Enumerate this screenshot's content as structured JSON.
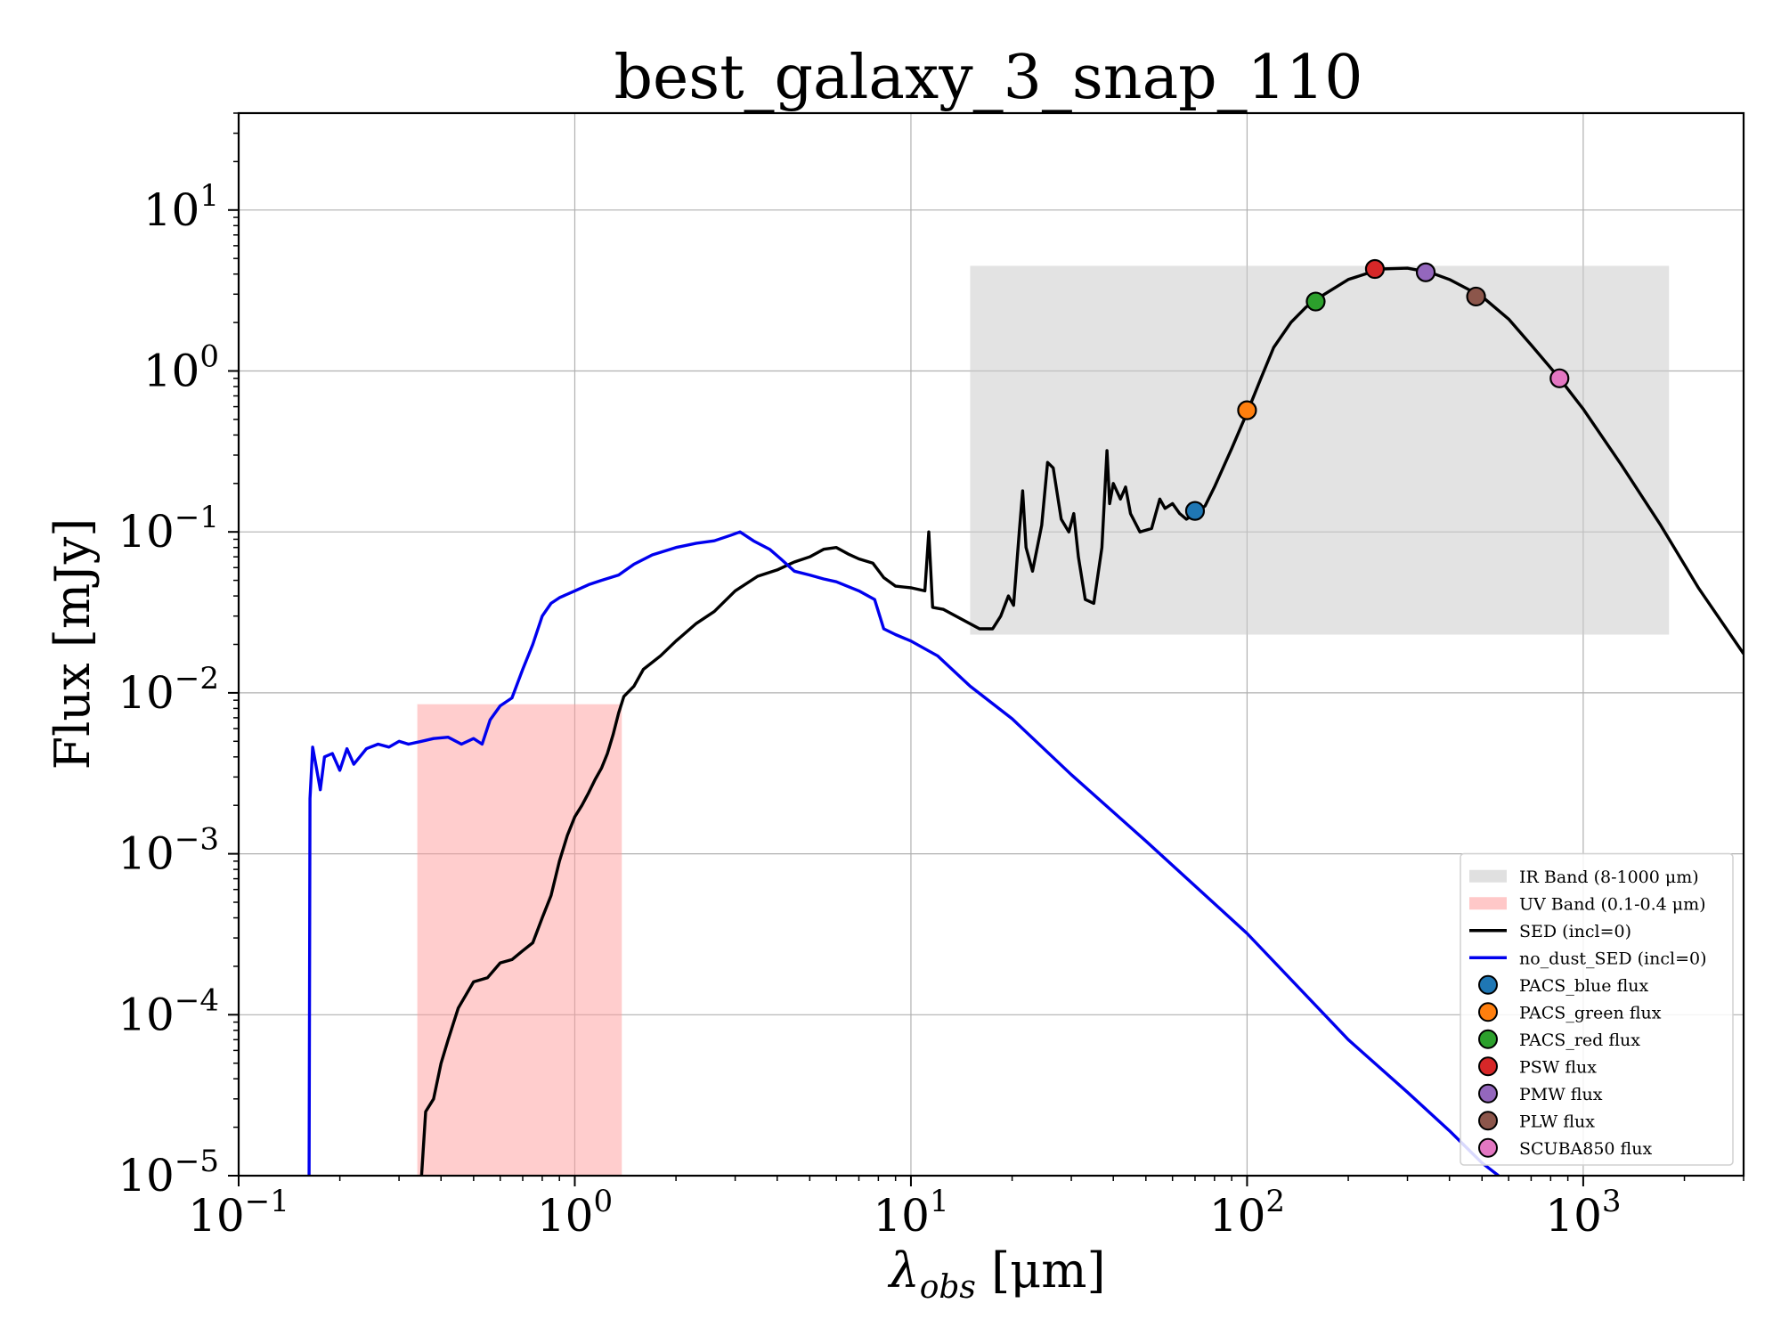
{
  "chart_data": {
    "type": "line",
    "title": "best_galaxy_3_snap_110",
    "xlabel": "λobs [μm]",
    "xlabel_main": "λ",
    "xlabel_sub": "obs",
    "xlabel_rest": " [μm]",
    "ylabel": "Flux [mJy]",
    "xscale": "log",
    "yscale": "log",
    "xlim": [
      0.1,
      3000
    ],
    "ylim": [
      1e-05,
      40
    ],
    "grid": true,
    "legend_position": "lower-right",
    "x_ticks": [
      {
        "value": 0.1,
        "base": "10",
        "exp": "−1"
      },
      {
        "value": 1,
        "base": "10",
        "exp": "0"
      },
      {
        "value": 10,
        "base": "10",
        "exp": "1"
      },
      {
        "value": 100,
        "base": "10",
        "exp": "2"
      },
      {
        "value": 1000,
        "base": "10",
        "exp": "3"
      }
    ],
    "y_ticks": [
      {
        "value": 1e-05,
        "base": "10",
        "exp": "−5"
      },
      {
        "value": 0.0001,
        "base": "10",
        "exp": "−4"
      },
      {
        "value": 0.001,
        "base": "10",
        "exp": "−3"
      },
      {
        "value": 0.01,
        "base": "10",
        "exp": "−2"
      },
      {
        "value": 0.1,
        "base": "10",
        "exp": "−1"
      },
      {
        "value": 1,
        "base": "10",
        "exp": "0"
      },
      {
        "value": 10,
        "base": "10",
        "exp": "1"
      }
    ],
    "bands": [
      {
        "name": "IR Band (8-1000 μm)",
        "x": [
          15,
          1800
        ],
        "y": [
          0.023,
          4.5
        ],
        "color": "#cccccc",
        "opacity": 0.55
      },
      {
        "name": "UV Band (0.1-0.4 μm)",
        "x": [
          0.34,
          1.38
        ],
        "y": [
          1e-05,
          0.0085
        ],
        "color": "#ff9b9b",
        "opacity": 0.5
      }
    ],
    "series": [
      {
        "name": "SED (incl=0)",
        "color": "#000000",
        "points": [
          [
            0.35,
            1e-05
          ],
          [
            0.36,
            2.5e-05
          ],
          [
            0.38,
            3e-05
          ],
          [
            0.4,
            5e-05
          ],
          [
            0.42,
            7e-05
          ],
          [
            0.45,
            0.00011
          ],
          [
            0.5,
            0.00016
          ],
          [
            0.55,
            0.00017
          ],
          [
            0.6,
            0.00021
          ],
          [
            0.65,
            0.00022
          ],
          [
            0.7,
            0.00025
          ],
          [
            0.75,
            0.00028
          ],
          [
            0.8,
            0.0004
          ],
          [
            0.85,
            0.00055
          ],
          [
            0.9,
            0.0009
          ],
          [
            0.95,
            0.0013
          ],
          [
            1.0,
            0.0017
          ],
          [
            1.05,
            0.002
          ],
          [
            1.1,
            0.0024
          ],
          [
            1.15,
            0.0029
          ],
          [
            1.2,
            0.0034
          ],
          [
            1.25,
            0.0042
          ],
          [
            1.3,
            0.0055
          ],
          [
            1.35,
            0.0075
          ],
          [
            1.4,
            0.0095
          ],
          [
            1.5,
            0.011
          ],
          [
            1.6,
            0.014
          ],
          [
            1.8,
            0.017
          ],
          [
            2.0,
            0.021
          ],
          [
            2.3,
            0.027
          ],
          [
            2.6,
            0.032
          ],
          [
            3.0,
            0.043
          ],
          [
            3.5,
            0.053
          ],
          [
            4.0,
            0.058
          ],
          [
            4.5,
            0.065
          ],
          [
            5.0,
            0.07
          ],
          [
            5.5,
            0.078
          ],
          [
            6.0,
            0.08
          ],
          [
            6.5,
            0.073
          ],
          [
            7.0,
            0.068
          ],
          [
            7.7,
            0.064
          ],
          [
            8.3,
            0.052
          ],
          [
            9.0,
            0.046
          ],
          [
            10.0,
            0.045
          ],
          [
            11.0,
            0.043
          ],
          [
            11.3,
            0.1
          ],
          [
            11.6,
            0.034
          ],
          [
            12.5,
            0.033
          ],
          [
            14.0,
            0.029
          ],
          [
            16.0,
            0.025
          ],
          [
            17.5,
            0.025
          ],
          [
            18.5,
            0.03
          ],
          [
            19.5,
            0.04
          ],
          [
            20.2,
            0.035
          ],
          [
            21.0,
            0.1
          ],
          [
            21.5,
            0.18
          ],
          [
            22.0,
            0.08
          ],
          [
            23.0,
            0.057
          ],
          [
            24.5,
            0.11
          ],
          [
            25.5,
            0.27
          ],
          [
            26.5,
            0.25
          ],
          [
            28.0,
            0.12
          ],
          [
            29.5,
            0.1
          ],
          [
            30.5,
            0.13
          ],
          [
            31.5,
            0.07
          ],
          [
            33.0,
            0.038
          ],
          [
            35.0,
            0.036
          ],
          [
            37.0,
            0.08
          ],
          [
            38.3,
            0.32
          ],
          [
            39.0,
            0.15
          ],
          [
            40.0,
            0.2
          ],
          [
            42.0,
            0.16
          ],
          [
            43.5,
            0.19
          ],
          [
            45.0,
            0.13
          ],
          [
            48.0,
            0.1
          ],
          [
            52.0,
            0.105
          ],
          [
            55.0,
            0.16
          ],
          [
            57.0,
            0.14
          ],
          [
            60.0,
            0.15
          ],
          [
            63.0,
            0.13
          ],
          [
            66.0,
            0.12
          ],
          [
            70.0,
            0.13
          ],
          [
            75.0,
            0.145
          ],
          [
            80.0,
            0.19
          ],
          [
            90.0,
            0.33
          ],
          [
            100.0,
            0.55
          ],
          [
            110.0,
            0.9
          ],
          [
            120.0,
            1.4
          ],
          [
            135.0,
            2.0
          ],
          [
            150.0,
            2.5
          ],
          [
            170.0,
            3.0
          ],
          [
            200.0,
            3.7
          ],
          [
            250.0,
            4.3
          ],
          [
            300.0,
            4.35
          ],
          [
            350.0,
            4.1
          ],
          [
            400.0,
            3.7
          ],
          [
            500.0,
            2.9
          ],
          [
            600.0,
            2.1
          ],
          [
            700.0,
            1.45
          ],
          [
            850.0,
            0.9
          ],
          [
            1000.0,
            0.58
          ],
          [
            1300.0,
            0.26
          ],
          [
            1700.0,
            0.11
          ],
          [
            2200.0,
            0.045
          ],
          [
            3000.0,
            0.0175
          ]
        ]
      },
      {
        "name": "no_dust_SED (incl=0)",
        "color": "#0000ee",
        "points": [
          [
            0.162,
            1e-05
          ],
          [
            0.163,
            0.0022
          ],
          [
            0.166,
            0.0046
          ],
          [
            0.17,
            0.0035
          ],
          [
            0.175,
            0.0025
          ],
          [
            0.18,
            0.004
          ],
          [
            0.19,
            0.0042
          ],
          [
            0.2,
            0.0033
          ],
          [
            0.21,
            0.0045
          ],
          [
            0.22,
            0.0036
          ],
          [
            0.24,
            0.0045
          ],
          [
            0.26,
            0.0048
          ],
          [
            0.28,
            0.0046
          ],
          [
            0.3,
            0.005
          ],
          [
            0.32,
            0.0048
          ],
          [
            0.35,
            0.005
          ],
          [
            0.38,
            0.0052
          ],
          [
            0.42,
            0.0053
          ],
          [
            0.46,
            0.0048
          ],
          [
            0.5,
            0.0052
          ],
          [
            0.53,
            0.0048
          ],
          [
            0.56,
            0.0068
          ],
          [
            0.6,
            0.0083
          ],
          [
            0.65,
            0.0093
          ],
          [
            0.7,
            0.014
          ],
          [
            0.75,
            0.02
          ],
          [
            0.8,
            0.03
          ],
          [
            0.85,
            0.036
          ],
          [
            0.9,
            0.039
          ],
          [
            1.0,
            0.043
          ],
          [
            1.1,
            0.047
          ],
          [
            1.2,
            0.05
          ],
          [
            1.35,
            0.054
          ],
          [
            1.5,
            0.063
          ],
          [
            1.7,
            0.072
          ],
          [
            2.0,
            0.08
          ],
          [
            2.3,
            0.085
          ],
          [
            2.6,
            0.088
          ],
          [
            2.9,
            0.095
          ],
          [
            3.1,
            0.1
          ],
          [
            3.4,
            0.088
          ],
          [
            3.8,
            0.078
          ],
          [
            4.1,
            0.068
          ],
          [
            4.5,
            0.057
          ],
          [
            5.0,
            0.054
          ],
          [
            5.5,
            0.051
          ],
          [
            6.0,
            0.049
          ],
          [
            7.0,
            0.043
          ],
          [
            7.8,
            0.038
          ],
          [
            8.3,
            0.025
          ],
          [
            9.0,
            0.023
          ],
          [
            10.0,
            0.021
          ],
          [
            12.0,
            0.017
          ],
          [
            15.0,
            0.011
          ],
          [
            20.0,
            0.0069
          ],
          [
            30.0,
            0.0031
          ],
          [
            50.0,
            0.0012
          ],
          [
            100.0,
            0.00032
          ],
          [
            200.0,
            7e-05
          ],
          [
            300.0,
            3.3e-05
          ],
          [
            400.0,
            1.9e-05
          ],
          [
            500.0,
            1.2e-05
          ],
          [
            560.0,
            1e-05
          ]
        ]
      }
    ],
    "markers": [
      {
        "name": "PACS_blue flux",
        "x": 70,
        "y": 0.135,
        "color": "#1f77b4"
      },
      {
        "name": "PACS_green flux",
        "x": 100,
        "y": 0.57,
        "color": "#ff7f0e"
      },
      {
        "name": "PACS_red flux",
        "x": 160,
        "y": 2.7,
        "color": "#2ca02c"
      },
      {
        "name": "PSW flux",
        "x": 240,
        "y": 4.3,
        "color": "#d62728"
      },
      {
        "name": "PMW flux",
        "x": 340,
        "y": 4.1,
        "color": "#9467bd"
      },
      {
        "name": "PLW flux",
        "x": 480,
        "y": 2.9,
        "color": "#8c564b"
      },
      {
        "name": "SCUBA850 flux",
        "x": 850,
        "y": 0.9,
        "color": "#e377c2"
      }
    ],
    "legend": [
      {
        "label": "IR Band (8-1000 μm)",
        "kind": "patch",
        "color": "#e0e0e0"
      },
      {
        "label": "UV Band (0.1-0.4 μm)",
        "kind": "patch",
        "color": "#ffc8c8"
      },
      {
        "label": "SED (incl=0)",
        "kind": "line",
        "color": "#000000"
      },
      {
        "label": "no_dust_SED (incl=0)",
        "kind": "line",
        "color": "#0000ee"
      },
      {
        "label": "PACS_blue flux",
        "kind": "marker",
        "color": "#1f77b4"
      },
      {
        "label": "PACS_green flux",
        "kind": "marker",
        "color": "#ff7f0e"
      },
      {
        "label": "PACS_red flux",
        "kind": "marker",
        "color": "#2ca02c"
      },
      {
        "label": "PSW flux",
        "kind": "marker",
        "color": "#d62728"
      },
      {
        "label": "PMW flux",
        "kind": "marker",
        "color": "#9467bd"
      },
      {
        "label": "PLW flux",
        "kind": "marker",
        "color": "#8c564b"
      },
      {
        "label": "SCUBA850 flux",
        "kind": "marker",
        "color": "#e377c2"
      }
    ]
  }
}
